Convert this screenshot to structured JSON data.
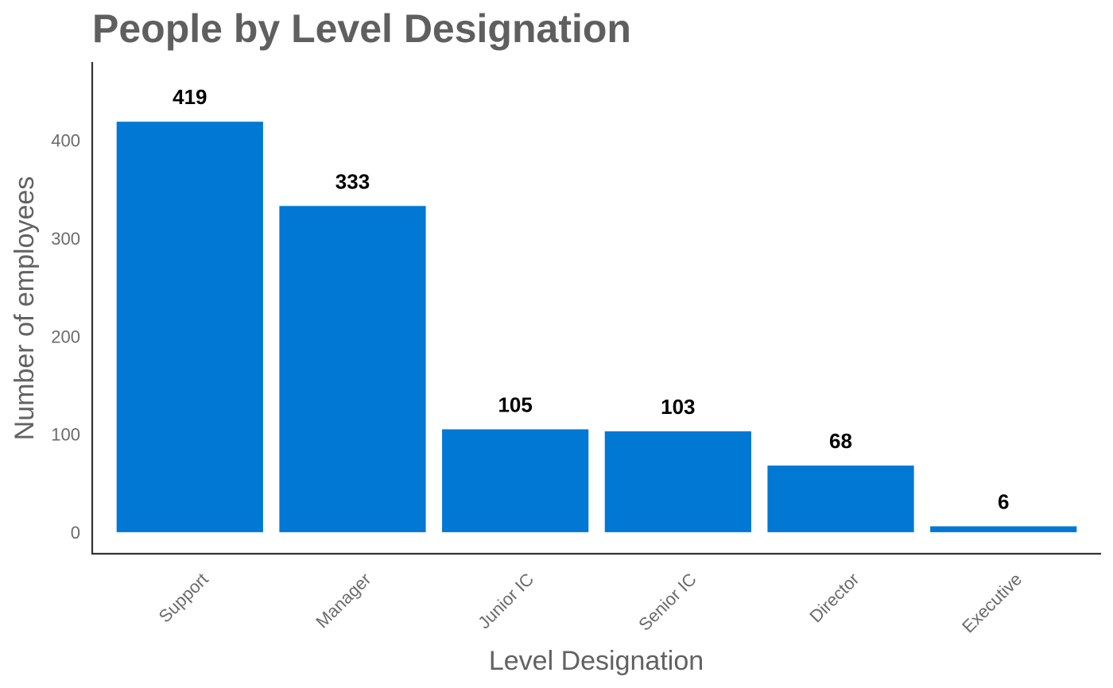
{
  "chart_data": {
    "type": "bar",
    "title": "People by Level Designation",
    "xlabel": "Level Designation",
    "ylabel": "Number of employees",
    "categories": [
      "Support",
      "Manager",
      "Junior IC",
      "Senior IC",
      "Director",
      "Executive"
    ],
    "values": [
      419,
      333,
      105,
      103,
      68,
      6
    ],
    "data_labels": [
      "419",
      "333",
      "105",
      "103",
      "68",
      "6"
    ],
    "yticks": [
      0,
      100,
      200,
      300,
      400
    ],
    "ylim": [
      -22,
      480
    ],
    "grid": false,
    "legend": "none",
    "bar_color": "#0078d4"
  }
}
